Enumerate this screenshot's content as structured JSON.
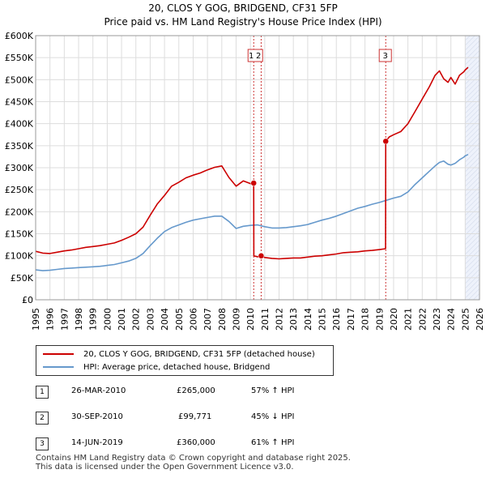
{
  "title": "20, CLOS Y GOG, BRIDGEND, CF31 5FP",
  "subtitle": "Price paid vs. HM Land Registry's House Price Index (HPI)",
  "colors": {
    "red": "#cc0000",
    "blue": "#6699cc",
    "marker_line": "#cc3333",
    "shade": "#eef2fb"
  },
  "chart_data": {
    "type": "line",
    "title": "20, CLOS Y GOG, BRIDGEND, CF31 5FP",
    "subtitle": "Price paid vs. HM Land Registry's House Price Index (HPI)",
    "xlim": [
      1995,
      2026
    ],
    "ylim": [
      0,
      600000
    ],
    "y_ticks": [
      0,
      50000,
      100000,
      150000,
      200000,
      250000,
      300000,
      350000,
      400000,
      450000,
      500000,
      550000,
      600000
    ],
    "y_tick_labels": [
      "£0",
      "£50K",
      "£100K",
      "£150K",
      "£200K",
      "£250K",
      "£300K",
      "£350K",
      "£400K",
      "£450K",
      "£500K",
      "£550K",
      "£600K"
    ],
    "x_ticks": [
      1995,
      1996,
      1997,
      1998,
      1999,
      2000,
      2001,
      2002,
      2003,
      2004,
      2005,
      2006,
      2007,
      2008,
      2009,
      2010,
      2011,
      2012,
      2013,
      2014,
      2015,
      2016,
      2017,
      2018,
      2019,
      2020,
      2021,
      2022,
      2023,
      2024,
      2025,
      2026
    ],
    "x_tick_labels": [
      "1995",
      "1996",
      "1997",
      "1998",
      "1999",
      "2000",
      "2001",
      "2002",
      "2003",
      "2004",
      "2005",
      "2006",
      "2007",
      "2008",
      "2009",
      "2010",
      "2011",
      "2012",
      "2013",
      "2014",
      "2015",
      "2016",
      "2017",
      "2018",
      "2019",
      "2020",
      "2021",
      "2022",
      "2023",
      "2024",
      "2025",
      "2026"
    ],
    "grid": true,
    "shaded_future_from": 2025.0,
    "series": [
      {
        "name": "20, CLOS Y GOG, BRIDGEND, CF31 5FP (detached house)",
        "color": "#cc0000",
        "x": [
          1995.0,
          1995.5,
          1996.0,
          1996.5,
          1997.0,
          1997.5,
          1998.0,
          1998.5,
          1999.0,
          1999.5,
          2000.0,
          2000.5,
          2001.0,
          2001.5,
          2002.0,
          2002.5,
          2003.0,
          2003.5,
          2004.0,
          2004.5,
          2005.0,
          2005.5,
          2006.0,
          2006.5,
          2007.0,
          2007.5,
          2008.0,
          2008.5,
          2009.0,
          2009.5,
          2010.0,
          2010.23,
          2010.24,
          2010.5,
          2010.74,
          2010.75,
          2011.0,
          2011.5,
          2012.0,
          2012.5,
          2013.0,
          2013.5,
          2014.0,
          2014.5,
          2015.0,
          2015.5,
          2016.0,
          2016.5,
          2017.0,
          2017.5,
          2018.0,
          2018.5,
          2019.0,
          2019.44,
          2019.45,
          2019.7,
          2020.0,
          2020.5,
          2021.0,
          2021.5,
          2022.0,
          2022.5,
          2022.9,
          2023.2,
          2023.5,
          2023.8,
          2024.0,
          2024.3,
          2024.6,
          2024.9,
          2025.0,
          2025.2
        ],
        "y": [
          110000,
          106000,
          105000,
          108000,
          111000,
          113000,
          116000,
          119000,
          121000,
          123000,
          126000,
          129000,
          135000,
          142000,
          150000,
          165000,
          192000,
          218000,
          237000,
          258000,
          267000,
          277000,
          283000,
          288000,
          295000,
          301000,
          304000,
          278000,
          258000,
          270000,
          264000,
          265000,
          99771,
          97500,
          99000,
          99771,
          96000,
          94000,
          93000,
          94000,
          95000,
          95000,
          97000,
          99000,
          100000,
          102000,
          104000,
          107000,
          108000,
          109000,
          111000,
          112000,
          114000,
          116000,
          360000,
          370000,
          375000,
          382000,
          400000,
          428000,
          456000,
          484000,
          510000,
          520000,
          502000,
          494000,
          505000,
          490000,
          510000,
          518000,
          522000,
          528000
        ]
      },
      {
        "name": "HPI: Average price, detached house, Bridgend",
        "color": "#6699cc",
        "x": [
          1995.0,
          1995.5,
          1996.0,
          1996.5,
          1997.0,
          1997.5,
          1998.0,
          1998.5,
          1999.0,
          1999.5,
          2000.0,
          2000.5,
          2001.0,
          2001.5,
          2002.0,
          2002.5,
          2003.0,
          2003.5,
          2004.0,
          2004.5,
          2005.0,
          2005.5,
          2006.0,
          2006.5,
          2007.0,
          2007.5,
          2008.0,
          2008.5,
          2009.0,
          2009.5,
          2010.0,
          2010.5,
          2011.0,
          2011.5,
          2012.0,
          2012.5,
          2013.0,
          2013.5,
          2014.0,
          2014.5,
          2015.0,
          2015.5,
          2016.0,
          2016.5,
          2017.0,
          2017.5,
          2018.0,
          2018.5,
          2019.0,
          2019.5,
          2020.0,
          2020.5,
          2021.0,
          2021.5,
          2022.0,
          2022.5,
          2022.9,
          2023.2,
          2023.5,
          2023.8,
          2024.0,
          2024.3,
          2024.6,
          2024.9,
          2025.0,
          2025.2
        ],
        "y": [
          68000,
          66000,
          67000,
          69000,
          71000,
          72000,
          73000,
          74000,
          75000,
          76000,
          78000,
          80000,
          84000,
          88000,
          94000,
          105000,
          123000,
          140000,
          155000,
          164000,
          170000,
          176000,
          181000,
          184000,
          187000,
          190000,
          190000,
          178000,
          162000,
          167000,
          169000,
          170000,
          166000,
          163000,
          163000,
          164000,
          166000,
          168000,
          171000,
          176000,
          181000,
          185000,
          190000,
          196000,
          202000,
          208000,
          212000,
          217000,
          221000,
          226000,
          231000,
          235000,
          245000,
          262000,
          277000,
          292000,
          304000,
          312000,
          315000,
          308000,
          306000,
          310000,
          318000,
          324000,
          327000,
          330000
        ]
      }
    ],
    "sale_markers": [
      {
        "label": "1",
        "x": 2010.23,
        "y": 265000
      },
      {
        "label": "2",
        "x": 2010.75,
        "y": 99771
      },
      {
        "label": "3",
        "x": 2019.45,
        "y": 360000
      }
    ]
  },
  "legend": {
    "red_label": "20, CLOS Y GOG, BRIDGEND, CF31 5FP (detached house)",
    "blue_label": "HPI: Average price, detached house, Bridgend"
  },
  "sales": [
    {
      "num": "1",
      "date": "26-MAR-2010",
      "price": "£265,000",
      "hpi": "57% ↑ HPI"
    },
    {
      "num": "2",
      "date": "30-SEP-2010",
      "price": "£99,771",
      "hpi": "45% ↓ HPI"
    },
    {
      "num": "3",
      "date": "14-JUN-2019",
      "price": "£360,000",
      "hpi": "61% ↑ HPI"
    }
  ],
  "footer": {
    "line1": "Contains HM Land Registry data © Crown copyright and database right 2025.",
    "line2": "This data is licensed under the Open Government Licence v3.0."
  }
}
